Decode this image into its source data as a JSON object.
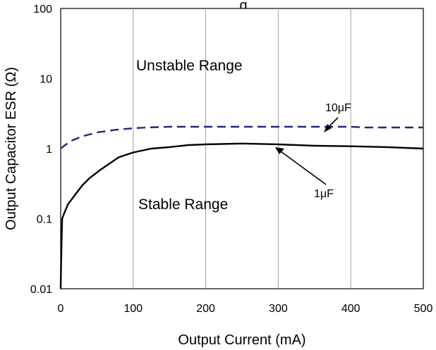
{
  "chart_data": {
    "type": "line",
    "title_fragment": "g",
    "xlabel": "Output Current (mA)",
    "ylabel": "Output Capacitor ESR (Ω)",
    "xlim": [
      0,
      500
    ],
    "ylim": [
      0.01,
      100
    ],
    "yscale": "log",
    "grid": "vertical",
    "x_ticks": [
      "0",
      "100",
      "200",
      "300",
      "400",
      "500"
    ],
    "y_ticks": [
      "0.01",
      "0.1",
      "1",
      "10",
      "100"
    ],
    "series": [
      {
        "name": "10μF",
        "color": "#1f2a7a",
        "style": "dashed",
        "x": [
          0,
          5,
          15,
          30,
          50,
          75,
          100,
          120,
          150,
          200,
          250,
          300,
          350,
          400,
          420,
          450,
          500
        ],
        "y": [
          1.0,
          1.1,
          1.3,
          1.5,
          1.7,
          1.85,
          1.95,
          2.0,
          2.05,
          2.05,
          2.05,
          2.05,
          2.05,
          2.05,
          2.0,
          2.0,
          2.0
        ]
      },
      {
        "name": "1μF",
        "color": "#000000",
        "style": "solid",
        "x": [
          0,
          0.5,
          2,
          5,
          10,
          20,
          30,
          40,
          55,
          80,
          100,
          125,
          150,
          175,
          200,
          250,
          300,
          350,
          400,
          450,
          500
        ],
        "y": [
          0.01,
          0.02,
          0.1,
          0.12,
          0.16,
          0.22,
          0.3,
          0.38,
          0.5,
          0.75,
          0.88,
          1.0,
          1.05,
          1.12,
          1.15,
          1.18,
          1.15,
          1.1,
          1.08,
          1.05,
          1.0
        ]
      }
    ],
    "annotations": {
      "unstable": "Unstable Range",
      "stable": "Stable Range",
      "label_10uF": "10μF",
      "label_1uF": "1μF"
    }
  }
}
